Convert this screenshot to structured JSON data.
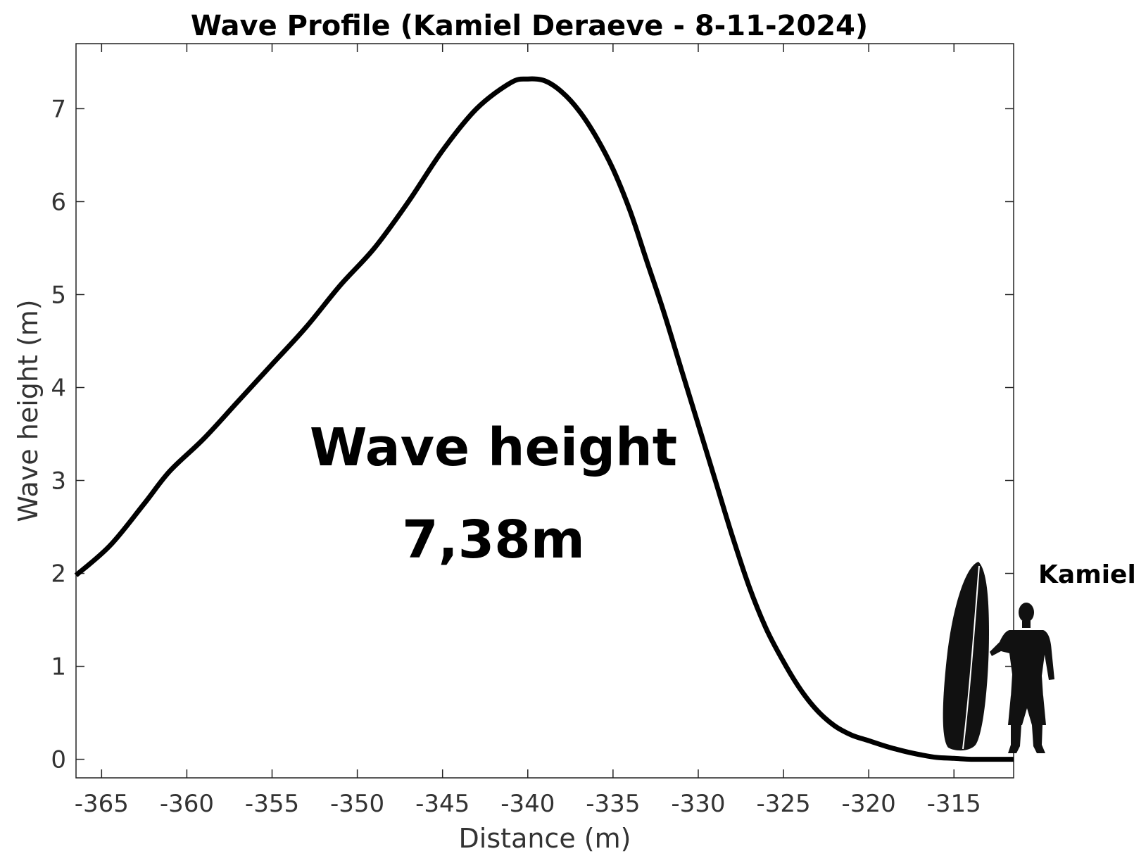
{
  "chart_data": {
    "type": "line",
    "title": "Wave Profile (Kamiel Deraeve - 8-11-2024)",
    "xlabel": "Distance (m)",
    "ylabel": "Wave height (m)",
    "xlim": [
      -366.5,
      -311.5
    ],
    "ylim": [
      -0.2,
      7.7
    ],
    "xticks": [
      -365,
      -360,
      -355,
      -350,
      -345,
      -340,
      -335,
      -330,
      -325,
      -320,
      -315
    ],
    "yticks": [
      0,
      1,
      2,
      3,
      4,
      5,
      6,
      7
    ],
    "grid": false,
    "series": [
      {
        "color": "#000000",
        "x": [
          -366.5,
          -364.5,
          -362.5,
          -361,
          -359,
          -357,
          -355,
          -353,
          -351,
          -349,
          -347,
          -345,
          -343,
          -341,
          -340,
          -339,
          -338,
          -337,
          -336,
          -335,
          -334,
          -333,
          -332,
          -331,
          -330,
          -329,
          -328,
          -327,
          -326,
          -325,
          -324,
          -323,
          -322,
          -321,
          -320,
          -319,
          -318,
          -317,
          -316,
          -315,
          -314,
          -313,
          -312,
          -311.5
        ],
        "y": [
          1.98,
          2.3,
          2.75,
          3.1,
          3.45,
          3.85,
          4.25,
          4.65,
          5.1,
          5.5,
          6.0,
          6.55,
          7.0,
          7.28,
          7.32,
          7.3,
          7.18,
          6.98,
          6.7,
          6.35,
          5.9,
          5.35,
          4.8,
          4.2,
          3.6,
          3.0,
          2.4,
          1.85,
          1.4,
          1.05,
          0.75,
          0.52,
          0.36,
          0.26,
          0.2,
          0.14,
          0.09,
          0.05,
          0.02,
          0.01,
          0.0,
          0.0,
          0.0,
          0.0
        ]
      }
    ],
    "annotations": [
      {
        "text": "Wave height"
      },
      {
        "text": "7,38m"
      }
    ],
    "surfer_label": "Kamiel"
  }
}
